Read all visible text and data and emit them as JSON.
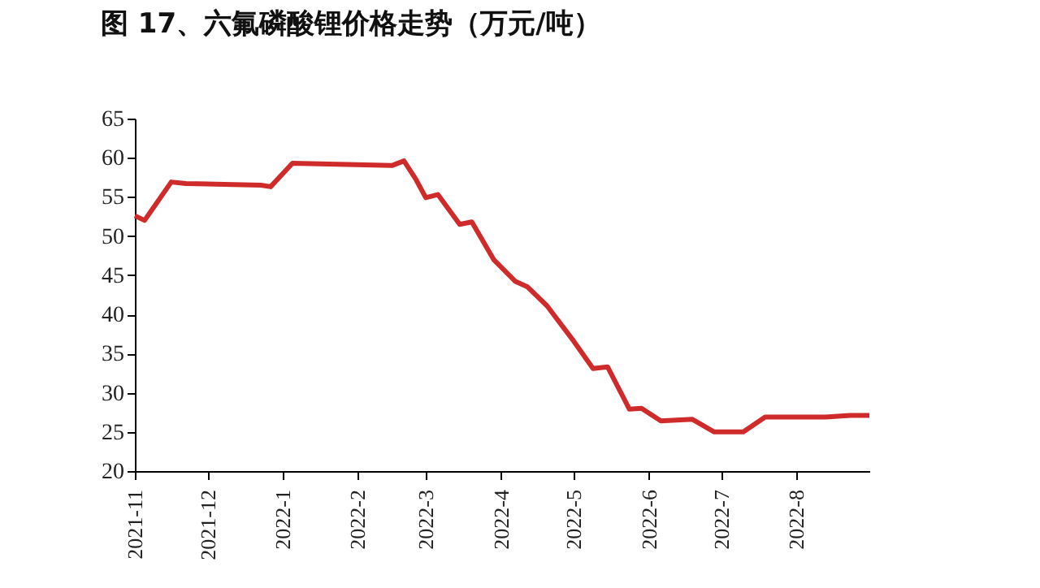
{
  "chart_data": {
    "type": "line",
    "title": "图 17、六氟磷酸锂价格走势（万元/吨）",
    "x": [
      "2021-11-01",
      "2021-11-05",
      "2021-11-16",
      "2021-11-22",
      "2021-12-23",
      "2021-12-27",
      "2022-01-05",
      "2022-02-15",
      "2022-02-20",
      "2022-02-25",
      "2022-03-01",
      "2022-03-06",
      "2022-03-15",
      "2022-03-20",
      "2022-03-29",
      "2022-04-07",
      "2022-04-12",
      "2022-04-20",
      "2022-05-01",
      "2022-05-09",
      "2022-05-15",
      "2022-05-24",
      "2022-05-29",
      "2022-06-06",
      "2022-06-19",
      "2022-06-28",
      "2022-07-10",
      "2022-07-19",
      "2022-08-13",
      "2022-08-23",
      "2022-08-31"
    ],
    "series": [
      {
        "color": "#d02b2b",
        "values": [
          52.6,
          52.0,
          56.9,
          56.7,
          56.5,
          56.3,
          59.3,
          59.0,
          59.6,
          57.2,
          54.9,
          55.3,
          51.5,
          51.8,
          47.0,
          44.2,
          43.5,
          41.1,
          36.6,
          33.1,
          33.3,
          27.9,
          28.0,
          26.4,
          26.6,
          25.0,
          25.0,
          26.9,
          26.9,
          27.1,
          27.1
        ]
      }
    ],
    "xlim": [
      "2021-11-01",
      "2022-08-31"
    ],
    "xticks": [
      {
        "value": "2021-11-01",
        "label": "2021-11"
      },
      {
        "value": "2021-12-01",
        "label": "2021-12"
      },
      {
        "value": "2022-01-01",
        "label": "2022-1"
      },
      {
        "value": "2022-02-01",
        "label": "2022-2"
      },
      {
        "value": "2022-03-01",
        "label": "2022-3"
      },
      {
        "value": "2022-04-01",
        "label": "2022-4"
      },
      {
        "value": "2022-05-01",
        "label": "2022-5"
      },
      {
        "value": "2022-06-01",
        "label": "2022-6"
      },
      {
        "value": "2022-07-01",
        "label": "2022-7"
      },
      {
        "value": "2022-08-01",
        "label": "2022-8"
      }
    ],
    "ylim": [
      20,
      65
    ],
    "yticks": [
      20,
      25,
      30,
      35,
      40,
      45,
      50,
      55,
      60,
      65
    ],
    "grid": false,
    "marker": "none",
    "line_style": "solid"
  }
}
